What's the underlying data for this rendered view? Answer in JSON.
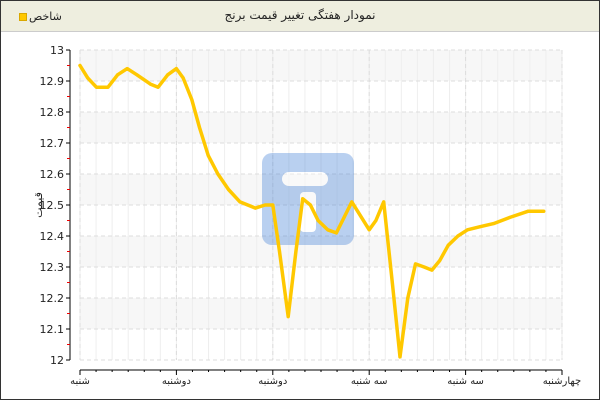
{
  "chart_data": {
    "type": "line",
    "title": "نمودار هفتگی تغییر قیمت برنج",
    "ylabel": "قیمت",
    "xlabel": "",
    "ylim": [
      12,
      13
    ],
    "yticks": [
      "12",
      "12.1",
      "12.2",
      "12.3",
      "12.4",
      "12.5",
      "12.6",
      "12.7",
      "12.8",
      "12.9",
      "13"
    ],
    "x_tick_labels": [
      "شنبه",
      "دوشنبه",
      "دوشنبه",
      "سه شنبه",
      "سه شنبه",
      "چهارشنبه"
    ],
    "grid": true,
    "legend_position": "top-left",
    "series": [
      {
        "name": "شاخص",
        "color": "#ffc800",
        "points": [
          [
            0.0,
            12.95
          ],
          [
            0.08,
            12.91
          ],
          [
            0.17,
            12.88
          ],
          [
            0.29,
            12.88
          ],
          [
            0.39,
            12.92
          ],
          [
            0.49,
            12.94
          ],
          [
            0.59,
            12.92
          ],
          [
            0.73,
            12.89
          ],
          [
            0.81,
            12.88
          ],
          [
            0.91,
            12.92
          ],
          [
            1.0,
            12.94
          ],
          [
            1.07,
            12.91
          ],
          [
            1.16,
            12.84
          ],
          [
            1.24,
            12.75
          ],
          [
            1.33,
            12.66
          ],
          [
            1.43,
            12.6
          ],
          [
            1.54,
            12.55
          ],
          [
            1.66,
            12.51
          ],
          [
            1.82,
            12.49
          ],
          [
            1.92,
            12.5
          ],
          [
            2.0,
            12.5
          ],
          [
            2.07,
            12.35
          ],
          [
            2.16,
            12.14
          ],
          [
            2.24,
            12.35
          ],
          [
            2.31,
            12.52
          ],
          [
            2.39,
            12.5
          ],
          [
            2.47,
            12.45
          ],
          [
            2.57,
            12.42
          ],
          [
            2.66,
            12.41
          ],
          [
            2.74,
            12.46
          ],
          [
            2.82,
            12.51
          ],
          [
            2.88,
            12.48
          ],
          [
            3.0,
            12.42
          ],
          [
            3.07,
            12.45
          ],
          [
            3.15,
            12.51
          ],
          [
            3.24,
            12.25
          ],
          [
            3.32,
            12.01
          ],
          [
            3.4,
            12.2
          ],
          [
            3.48,
            12.31
          ],
          [
            3.57,
            12.3
          ],
          [
            3.65,
            12.29
          ],
          [
            3.73,
            12.32
          ],
          [
            3.82,
            12.37
          ],
          [
            3.92,
            12.4
          ],
          [
            4.02,
            12.42
          ],
          [
            4.15,
            12.43
          ],
          [
            4.29,
            12.44
          ],
          [
            4.46,
            12.46
          ],
          [
            4.65,
            12.48
          ],
          [
            4.81,
            12.48
          ]
        ]
      }
    ]
  }
}
